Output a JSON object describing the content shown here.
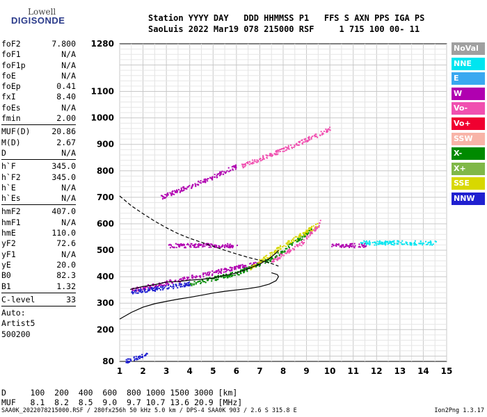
{
  "logo": {
    "line1": "Lowell",
    "line2": "DIGISONDE"
  },
  "header": {
    "line1": "Station YYYY DAY   DDD HHMMSS P1   FFS S AXN PPS IGA PS",
    "line2": "SaoLuis 2022 Mar19 078 215000 RSF     1 715 100 00- 11"
  },
  "params": {
    "group1": [
      {
        "name": "foF2",
        "value": "7.800"
      },
      {
        "name": "foF1",
        "value": "N/A"
      },
      {
        "name": "foF1p",
        "value": "N/A"
      },
      {
        "name": "foE",
        "value": "N/A"
      },
      {
        "name": "foEp",
        "value": "0.41"
      },
      {
        "name": "fxI",
        "value": "8.40"
      },
      {
        "name": "foEs",
        "value": "N/A"
      },
      {
        "name": "fmin",
        "value": "2.00"
      }
    ],
    "group2": [
      {
        "name": "MUF(D)",
        "value": "20.86"
      },
      {
        "name": "M(D)",
        "value": "2.67"
      },
      {
        "name": "D",
        "value": "N/A"
      }
    ],
    "group3": [
      {
        "name": "h`F",
        "value": "345.0"
      },
      {
        "name": "h`F2",
        "value": "345.0"
      },
      {
        "name": "h`E",
        "value": "N/A"
      },
      {
        "name": "h`Es",
        "value": "N/A"
      }
    ],
    "group4": [
      {
        "name": "hmF2",
        "value": "407.0"
      },
      {
        "name": "hmF1",
        "value": "N/A"
      },
      {
        "name": "hmE",
        "value": "110.0"
      },
      {
        "name": "yF2",
        "value": "72.6"
      },
      {
        "name": "yF1",
        "value": "N/A"
      },
      {
        "name": "yE",
        "value": "20.0"
      },
      {
        "name": "B0",
        "value": "82.3"
      },
      {
        "name": "B1",
        "value": "1.32"
      }
    ],
    "group5": [
      {
        "name": "C-level",
        "value": "33"
      }
    ],
    "auto": [
      "Auto:",
      "Artist5",
      "500200"
    ]
  },
  "legend": [
    {
      "label": "NoVal",
      "color": "#a0a0a0"
    },
    {
      "label": "NNE",
      "color": "#00e5f0"
    },
    {
      "label": "E",
      "color": "#3aa8f0"
    },
    {
      "label": "W",
      "color": "#b000b0"
    },
    {
      "label": "Vo-",
      "color": "#f050b0"
    },
    {
      "label": "Vo+",
      "color": "#f00030"
    },
    {
      "label": "SSW",
      "color": "#f8b4a8"
    },
    {
      "label": "X-",
      "color": "#008a00"
    },
    {
      "label": "X+",
      "color": "#80b848"
    },
    {
      "label": "SSE",
      "color": "#d8d800"
    },
    {
      "label": "NNW",
      "color": "#2020d0"
    }
  ],
  "bottom_table": {
    "row1": "D     100  200  400  600  800 1000 1500 3000 [km]",
    "row2": "MUF   8.1  8.2  8.5  9.0  9.7 10.7 13.6 20.9 [MHz]"
  },
  "footer": "SAA0K_2022078215000.RSF / 280fx256h 50 kHz 5.0 km / DPS-4 SAA0K 903 / 2.6 S 315.8 E",
  "version": "Ion2Png 1.3.17",
  "chart_data": {
    "type": "scatter",
    "title": "",
    "xlabel": "",
    "ylabel": "",
    "xlim": [
      1,
      15
    ],
    "ylim": [
      80,
      1280
    ],
    "x_ticks": [
      1,
      2,
      3,
      4,
      5,
      6,
      7,
      8,
      9,
      10,
      11,
      12,
      13,
      14,
      15
    ],
    "y_ticks": [
      80,
      200,
      300,
      400,
      500,
      600,
      700,
      800,
      900,
      1000,
      1100,
      1280
    ],
    "grid": true,
    "series": [
      {
        "name": "",
        "kind": "line",
        "dash": false,
        "color": "#000000",
        "x": [
          1.45,
          2.0,
          2.5,
          3.0,
          3.5,
          4.0,
          4.5,
          5.0,
          5.5,
          6.0,
          6.5,
          7.0,
          7.4,
          7.7,
          7.8
        ],
        "y": [
          352,
          363,
          370,
          380,
          382,
          387,
          390,
          395,
          405,
          414,
          430,
          448,
          468,
          490,
          500
        ]
      },
      {
        "name": "",
        "kind": "line",
        "dash": false,
        "color": "#000000",
        "x": [
          1.0,
          1.5,
          2.0,
          2.5,
          3.0,
          3.5,
          4.0,
          4.5,
          5.0,
          5.5,
          6.0,
          6.5,
          7.0,
          7.4,
          7.7,
          7.8,
          7.75,
          7.5
        ],
        "y": [
          240,
          265,
          285,
          298,
          307,
          315,
          322,
          330,
          338,
          345,
          350,
          355,
          362,
          372,
          385,
          400,
          408,
          415
        ]
      },
      {
        "name": "",
        "kind": "line",
        "dash": true,
        "color": "#000000",
        "x": [
          1.0,
          1.5,
          2.0,
          2.5,
          3.0,
          3.5,
          4.0,
          4.5,
          5.0,
          5.5,
          6.0,
          6.5,
          7.0,
          7.5,
          7.8
        ],
        "y": [
          705,
          668,
          638,
          610,
          585,
          563,
          545,
          530,
          515,
          500,
          486,
          473,
          462,
          450,
          440
        ]
      }
    ],
    "traces": [
      {
        "color": "#b000b0",
        "x": [
          1.5,
          3.8,
          6.2,
          7.0
        ],
        "y": [
          350,
          395,
          440,
          452
        ]
      },
      {
        "color": "#2020d0",
        "x": [
          1.5,
          2.5,
          4.0
        ],
        "y": [
          345,
          355,
          375
        ]
      },
      {
        "color": "#008a00",
        "x": [
          4.0,
          6.0,
          7.5,
          9.2
        ],
        "y": [
          375,
          415,
          470,
          580
        ]
      },
      {
        "color": "#d8d800",
        "x": [
          6.5,
          8.0,
          9.5
        ],
        "y": [
          430,
          520,
          600
        ]
      },
      {
        "color": "#f050b0",
        "x": [
          7.5,
          8.8,
          9.6
        ],
        "y": [
          460,
          530,
          610
        ]
      },
      {
        "color": "#b000b0",
        "x": [
          2.7,
          4.5,
          6.0
        ],
        "y": [
          700,
          760,
          820
        ]
      },
      {
        "color": "#f050b0",
        "x": [
          6.2,
          8.5,
          10.0
        ],
        "y": [
          820,
          900,
          960
        ]
      },
      {
        "color": "#b000b0",
        "x": [
          3.0,
          6.0
        ],
        "y": [
          520,
          520
        ]
      },
      {
        "color": "#00e5f0",
        "x": [
          11.3,
          14.5
        ],
        "y": [
          530,
          530
        ]
      },
      {
        "color": "#2020d0",
        "x": [
          1.2,
          2.2
        ],
        "y": [
          82,
          110
        ]
      },
      {
        "color": "#b000b0",
        "x": [
          10.0,
          11.5
        ],
        "y": [
          520,
          520
        ]
      }
    ]
  }
}
